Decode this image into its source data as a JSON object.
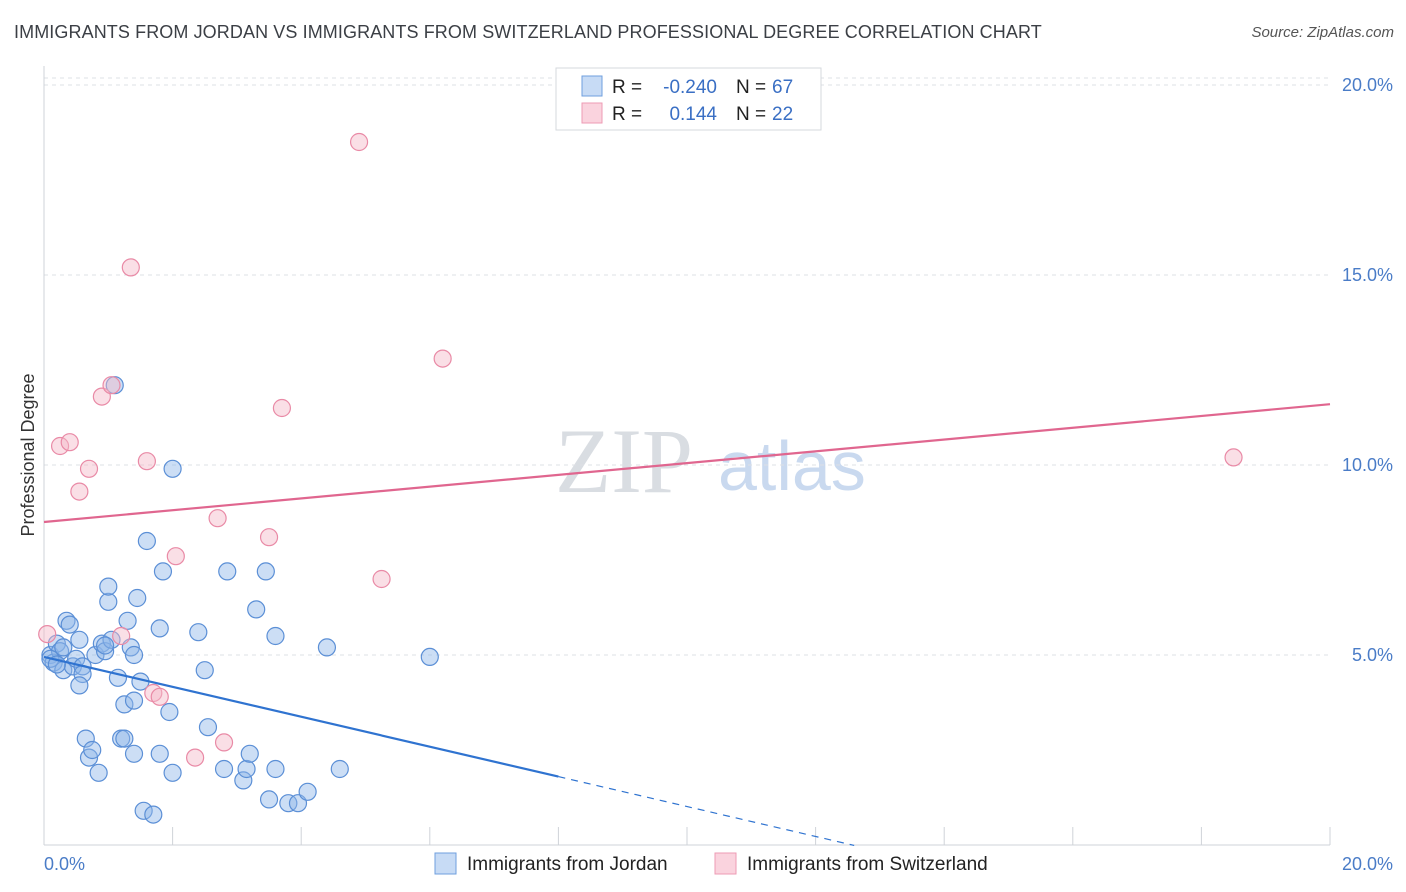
{
  "title": "IMMIGRANTS FROM JORDAN VS IMMIGRANTS FROM SWITZERLAND PROFESSIONAL DEGREE CORRELATION CHART",
  "source": "Source: ZipAtlas.com",
  "watermark": {
    "zip": "ZIP",
    "atlas": "atlas"
  },
  "legend": {
    "r_label": "R =",
    "n_label": "N =",
    "series": [
      {
        "name": "Immigrants from Jordan",
        "r": "-0.240",
        "n": "67",
        "color": "#8fb6e8",
        "stroke": "#5b8fd6"
      },
      {
        "name": "Immigrants from Switzerland",
        "r": "0.144",
        "n": "22",
        "color": "#f5b8c8",
        "stroke": "#e98aa6"
      }
    ]
  },
  "chart_data": {
    "type": "scatter",
    "title": "IMMIGRANTS FROM JORDAN VS IMMIGRANTS FROM SWITZERLAND PROFESSIONAL DEGREE CORRELATION CHART",
    "xlabel": "",
    "ylabel": "Professional Degree",
    "xlim": [
      0,
      20
    ],
    "ylim": [
      0,
      20.5
    ],
    "x_ticks": [
      {
        "value": 0,
        "label": "0.0%"
      },
      {
        "value": 20,
        "label": "20.0%"
      }
    ],
    "y_ticks": [
      {
        "value": 5,
        "label": "5.0%"
      },
      {
        "value": 10,
        "label": "10.0%"
      },
      {
        "value": 15,
        "label": "15.0%"
      },
      {
        "value": 20,
        "label": "20.0%"
      }
    ],
    "series": [
      {
        "name": "Immigrants from Jordan",
        "color": "#8fb6e8",
        "stroke": "#5b8fd6",
        "trend": {
          "x0": 0,
          "y0": 4.95,
          "x1": 8.0,
          "y1": 1.8,
          "dash_to_x": 12.6,
          "color": "#2f73d0"
        },
        "points": [
          [
            0.1,
            5.0
          ],
          [
            0.15,
            4.8
          ],
          [
            0.2,
            5.3
          ],
          [
            0.25,
            5.1
          ],
          [
            0.3,
            4.6
          ],
          [
            0.35,
            5.9
          ],
          [
            0.4,
            5.8
          ],
          [
            0.45,
            4.7
          ],
          [
            0.5,
            4.9
          ],
          [
            0.55,
            5.4
          ],
          [
            0.6,
            4.7
          ],
          [
            0.6,
            4.5
          ],
          [
            0.55,
            4.2
          ],
          [
            0.65,
            2.8
          ],
          [
            0.7,
            2.3
          ],
          [
            0.75,
            2.5
          ],
          [
            0.85,
            1.9
          ],
          [
            0.8,
            5.0
          ],
          [
            0.9,
            5.3
          ],
          [
            0.95,
            5.1
          ],
          [
            1.0,
            6.4
          ],
          [
            1.0,
            6.8
          ],
          [
            1.05,
            5.4
          ],
          [
            1.1,
            12.1
          ],
          [
            1.15,
            4.4
          ],
          [
            1.2,
            2.8
          ],
          [
            1.25,
            3.7
          ],
          [
            1.3,
            5.9
          ],
          [
            1.35,
            5.2
          ],
          [
            1.4,
            5.0
          ],
          [
            1.45,
            6.5
          ],
          [
            1.4,
            3.8
          ],
          [
            1.5,
            4.3
          ],
          [
            1.55,
            0.9
          ],
          [
            1.6,
            8.0
          ],
          [
            1.7,
            0.8
          ],
          [
            1.8,
            5.7
          ],
          [
            1.8,
            2.4
          ],
          [
            1.85,
            7.2
          ],
          [
            1.95,
            3.5
          ],
          [
            2.0,
            9.9
          ],
          [
            2.0,
            1.9
          ],
          [
            2.4,
            5.6
          ],
          [
            2.5,
            4.6
          ],
          [
            2.55,
            3.1
          ],
          [
            2.8,
            2.0
          ],
          [
            2.85,
            7.2
          ],
          [
            3.1,
            1.7
          ],
          [
            3.15,
            2.0
          ],
          [
            3.2,
            2.4
          ],
          [
            3.3,
            6.2
          ],
          [
            3.45,
            7.2
          ],
          [
            3.5,
            1.2
          ],
          [
            3.6,
            2.0
          ],
          [
            3.6,
            5.5
          ],
          [
            3.8,
            1.1
          ],
          [
            3.95,
            1.1
          ],
          [
            4.1,
            1.4
          ],
          [
            4.4,
            5.2
          ],
          [
            4.6,
            2.0
          ],
          [
            6.0,
            4.95
          ],
          [
            0.1,
            4.9
          ],
          [
            0.2,
            4.75
          ],
          [
            1.25,
            2.8
          ],
          [
            0.95,
            5.25
          ],
          [
            1.4,
            2.4
          ],
          [
            0.3,
            5.2
          ]
        ]
      },
      {
        "name": "Immigrants from Switzerland",
        "color": "#f5b8c8",
        "stroke": "#e98aa6",
        "trend": {
          "x0": 0,
          "y0": 8.5,
          "x1": 20,
          "y1": 11.6,
          "color": "#e0668f"
        },
        "points": [
          [
            0.05,
            5.55
          ],
          [
            0.25,
            10.5
          ],
          [
            0.4,
            10.6
          ],
          [
            0.55,
            9.3
          ],
          [
            0.7,
            9.9
          ],
          [
            0.9,
            11.8
          ],
          [
            1.05,
            12.1
          ],
          [
            1.2,
            5.5
          ],
          [
            1.35,
            15.2
          ],
          [
            1.6,
            10.1
          ],
          [
            1.7,
            4.0
          ],
          [
            1.8,
            3.9
          ],
          [
            2.05,
            7.6
          ],
          [
            2.35,
            2.3
          ],
          [
            2.7,
            8.6
          ],
          [
            2.8,
            2.7
          ],
          [
            3.5,
            8.1
          ],
          [
            3.7,
            11.5
          ],
          [
            4.9,
            18.5
          ],
          [
            5.25,
            7.0
          ],
          [
            6.2,
            12.8
          ],
          [
            18.5,
            10.2
          ]
        ]
      }
    ]
  }
}
